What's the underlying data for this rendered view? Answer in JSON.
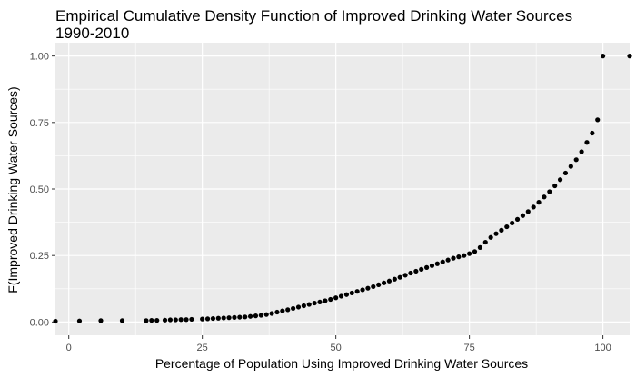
{
  "chart_data": {
    "type": "scatter",
    "title_line1": "Empirical Cumulative Density Function of Improved Drinking Water Sources",
    "title_line2": "1990-2010",
    "xlabel": "Percentage of Population Using Improved Drinking Water Sources",
    "ylabel": "F(Improved Drinking Water Sources)",
    "xlim": [
      -2.5,
      105
    ],
    "ylim": [
      -0.05,
      1.05
    ],
    "x_ticks": [
      0,
      25,
      50,
      75,
      100
    ],
    "x_tick_labels": [
      "0",
      "25",
      "50",
      "75",
      "100"
    ],
    "y_ticks": [
      0,
      0.25,
      0.5,
      0.75,
      1.0
    ],
    "y_tick_labels": [
      "0.00",
      "0.25",
      "0.50",
      "0.75",
      "1.00"
    ],
    "grid": true,
    "colors": {
      "panel": "#ebebeb",
      "grid": "#ffffff",
      "point": "#000000"
    },
    "points": {
      "x": [
        -2.5,
        2,
        6,
        10,
        14.5,
        15.5,
        16.5,
        18,
        19,
        20,
        21,
        22,
        23,
        25,
        26,
        27,
        28,
        29,
        30,
        31,
        32,
        33,
        34,
        35,
        36,
        37,
        38,
        39,
        40,
        41,
        42,
        43,
        44,
        45,
        46,
        47,
        48,
        49,
        50,
        51,
        52,
        53,
        54,
        55,
        56,
        57,
        58,
        59,
        60,
        61,
        62,
        63,
        64,
        65,
        66,
        67,
        68,
        69,
        70,
        71,
        72,
        73,
        74,
        75,
        76,
        77,
        78,
        79,
        80,
        81,
        82,
        83,
        84,
        85,
        86,
        87,
        88,
        89,
        90,
        91,
        92,
        93,
        94,
        95,
        96,
        97,
        98,
        99,
        100,
        105
      ],
      "y": [
        0.003,
        0.004,
        0.005,
        0.005,
        0.005,
        0.006,
        0.006,
        0.007,
        0.008,
        0.008,
        0.009,
        0.009,
        0.01,
        0.011,
        0.012,
        0.013,
        0.014,
        0.015,
        0.016,
        0.017,
        0.018,
        0.019,
        0.021,
        0.023,
        0.025,
        0.028,
        0.032,
        0.037,
        0.042,
        0.046,
        0.051,
        0.056,
        0.061,
        0.066,
        0.071,
        0.075,
        0.08,
        0.085,
        0.091,
        0.097,
        0.103,
        0.109,
        0.115,
        0.121,
        0.127,
        0.133,
        0.14,
        0.147,
        0.154,
        0.161,
        0.168,
        0.176,
        0.184,
        0.191,
        0.198,
        0.205,
        0.212,
        0.219,
        0.226,
        0.233,
        0.24,
        0.245,
        0.25,
        0.257,
        0.265,
        0.28,
        0.3,
        0.318,
        0.332,
        0.345,
        0.358,
        0.372,
        0.386,
        0.4,
        0.415,
        0.432,
        0.45,
        0.47,
        0.49,
        0.512,
        0.535,
        0.56,
        0.585,
        0.61,
        0.64,
        0.675,
        0.71,
        0.76,
        1.0,
        1.0
      ]
    }
  }
}
